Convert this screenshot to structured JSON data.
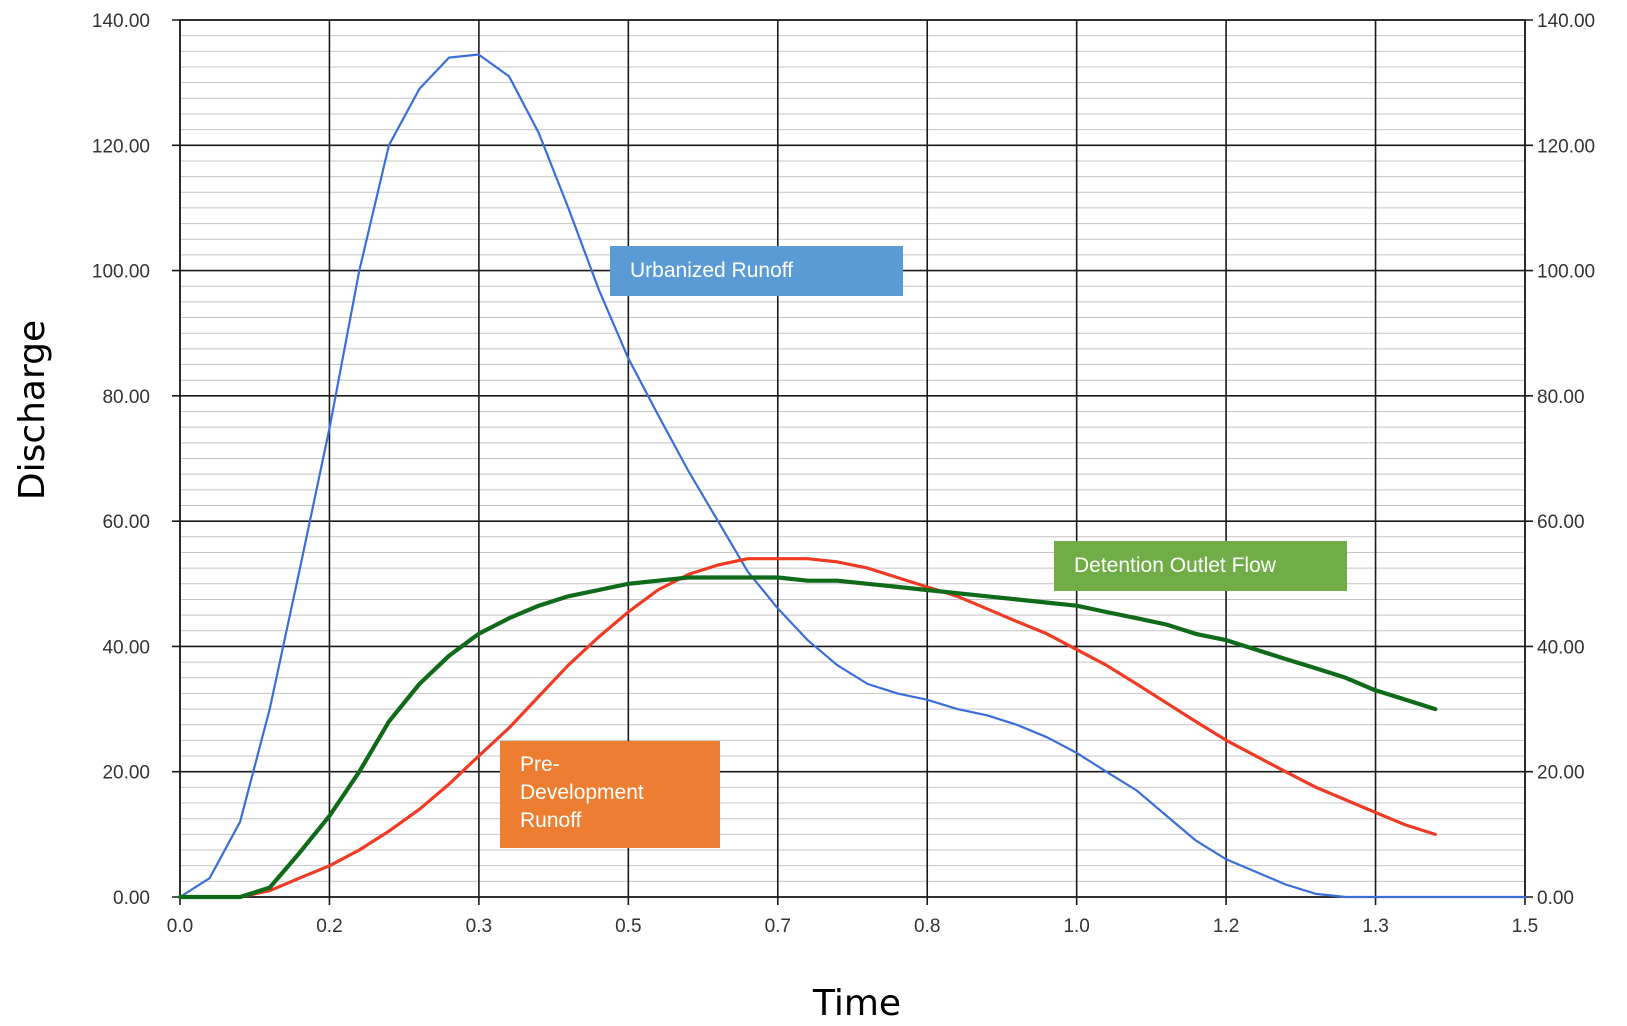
{
  "chart_data": {
    "type": "line",
    "xlabel": "Time",
    "ylabel": "Discharge",
    "xlim": [
      0,
      1.5
    ],
    "ylim": [
      0,
      140
    ],
    "x_tick_labels": [
      "0.0",
      "0.2",
      "0.3",
      "0.5",
      "0.7",
      "0.8",
      "1.0",
      "1.2",
      "1.3",
      "1.5"
    ],
    "y_tick_labels": [
      "0.00",
      "20.00",
      "40.00",
      "60.00",
      "80.00",
      "100.00",
      "120.00",
      "140.00"
    ],
    "grid": true,
    "secondary_y_axis": true,
    "series": [
      {
        "name": "Urbanized Runoff",
        "color": "#3a6fd8",
        "points": [
          [
            0,
            0
          ],
          [
            0.033,
            3
          ],
          [
            0.067,
            12
          ],
          [
            0.1,
            30
          ],
          [
            0.133,
            52
          ],
          [
            0.167,
            75
          ],
          [
            0.2,
            100
          ],
          [
            0.233,
            120
          ],
          [
            0.267,
            129
          ],
          [
            0.3,
            134
          ],
          [
            0.333,
            134.5
          ],
          [
            0.367,
            131
          ],
          [
            0.4,
            122
          ],
          [
            0.433,
            110
          ],
          [
            0.467,
            97
          ],
          [
            0.5,
            86
          ],
          [
            0.533,
            77
          ],
          [
            0.567,
            68
          ],
          [
            0.6,
            60
          ],
          [
            0.633,
            52
          ],
          [
            0.667,
            46
          ],
          [
            0.7,
            41
          ],
          [
            0.733,
            37
          ],
          [
            0.767,
            34
          ],
          [
            0.8,
            32.5
          ],
          [
            0.833,
            31.5
          ],
          [
            0.867,
            30
          ],
          [
            0.9,
            29
          ],
          [
            0.933,
            27.5
          ],
          [
            0.967,
            25.5
          ],
          [
            1.0,
            23
          ],
          [
            1.033,
            20
          ],
          [
            1.067,
            17
          ],
          [
            1.1,
            13
          ],
          [
            1.133,
            9
          ],
          [
            1.167,
            6
          ],
          [
            1.2,
            4
          ],
          [
            1.233,
            2
          ],
          [
            1.267,
            0.5
          ],
          [
            1.3,
            0
          ],
          [
            1.5,
            0
          ]
        ]
      },
      {
        "name": "Pre-Development Runoff",
        "color": "#ef3b24",
        "points": [
          [
            0,
            0
          ],
          [
            0.067,
            0
          ],
          [
            0.1,
            1
          ],
          [
            0.133,
            3
          ],
          [
            0.167,
            5
          ],
          [
            0.2,
            7.5
          ],
          [
            0.233,
            10.5
          ],
          [
            0.267,
            14
          ],
          [
            0.3,
            18
          ],
          [
            0.333,
            22.5
          ],
          [
            0.367,
            27
          ],
          [
            0.4,
            32
          ],
          [
            0.433,
            37
          ],
          [
            0.467,
            41.5
          ],
          [
            0.5,
            45.5
          ],
          [
            0.533,
            49
          ],
          [
            0.567,
            51.5
          ],
          [
            0.6,
            53
          ],
          [
            0.633,
            54
          ],
          [
            0.667,
            54
          ],
          [
            0.7,
            54
          ],
          [
            0.733,
            53.5
          ],
          [
            0.767,
            52.5
          ],
          [
            0.8,
            51
          ],
          [
            0.833,
            49.5
          ],
          [
            0.867,
            48
          ],
          [
            0.9,
            46
          ],
          [
            0.933,
            44
          ],
          [
            0.967,
            42
          ],
          [
            1.0,
            39.5
          ],
          [
            1.033,
            37
          ],
          [
            1.067,
            34
          ],
          [
            1.1,
            31
          ],
          [
            1.133,
            28
          ],
          [
            1.167,
            25
          ],
          [
            1.2,
            22.5
          ],
          [
            1.233,
            20
          ],
          [
            1.267,
            17.5
          ],
          [
            1.3,
            15.5
          ],
          [
            1.333,
            13.5
          ],
          [
            1.367,
            11.5
          ],
          [
            1.4,
            10
          ]
        ]
      },
      {
        "name": "Detention Outlet Flow",
        "color": "#0f6a1a",
        "points": [
          [
            0,
            0
          ],
          [
            0.067,
            0
          ],
          [
            0.1,
            1.5
          ],
          [
            0.133,
            7
          ],
          [
            0.167,
            13
          ],
          [
            0.2,
            20
          ],
          [
            0.233,
            28
          ],
          [
            0.267,
            34
          ],
          [
            0.3,
            38.5
          ],
          [
            0.333,
            42
          ],
          [
            0.367,
            44.5
          ],
          [
            0.4,
            46.5
          ],
          [
            0.433,
            48
          ],
          [
            0.467,
            49
          ],
          [
            0.5,
            50
          ],
          [
            0.533,
            50.5
          ],
          [
            0.567,
            51
          ],
          [
            0.6,
            51
          ],
          [
            0.633,
            51
          ],
          [
            0.667,
            51
          ],
          [
            0.7,
            50.5
          ],
          [
            0.733,
            50.5
          ],
          [
            0.767,
            50
          ],
          [
            0.8,
            49.5
          ],
          [
            0.833,
            49
          ],
          [
            0.867,
            48.5
          ],
          [
            0.9,
            48
          ],
          [
            0.933,
            47.5
          ],
          [
            0.967,
            47
          ],
          [
            1.0,
            46.5
          ],
          [
            1.033,
            45.5
          ],
          [
            1.067,
            44.5
          ],
          [
            1.1,
            43.5
          ],
          [
            1.133,
            42
          ],
          [
            1.167,
            41
          ],
          [
            1.2,
            39.5
          ],
          [
            1.233,
            38
          ],
          [
            1.267,
            36.5
          ],
          [
            1.3,
            35
          ],
          [
            1.333,
            33
          ],
          [
            1.367,
            31.5
          ],
          [
            1.4,
            30
          ]
        ]
      }
    ]
  },
  "callouts": {
    "urbanized": {
      "label": "Urbanized Runoff",
      "color": "#5b9bd5"
    },
    "detention": {
      "label": "Detention Outlet Flow",
      "color": "#70ad47"
    },
    "predevelopment": {
      "label": "Pre-\nDevelopment\nRunoff",
      "color": "#ed7d31"
    }
  }
}
